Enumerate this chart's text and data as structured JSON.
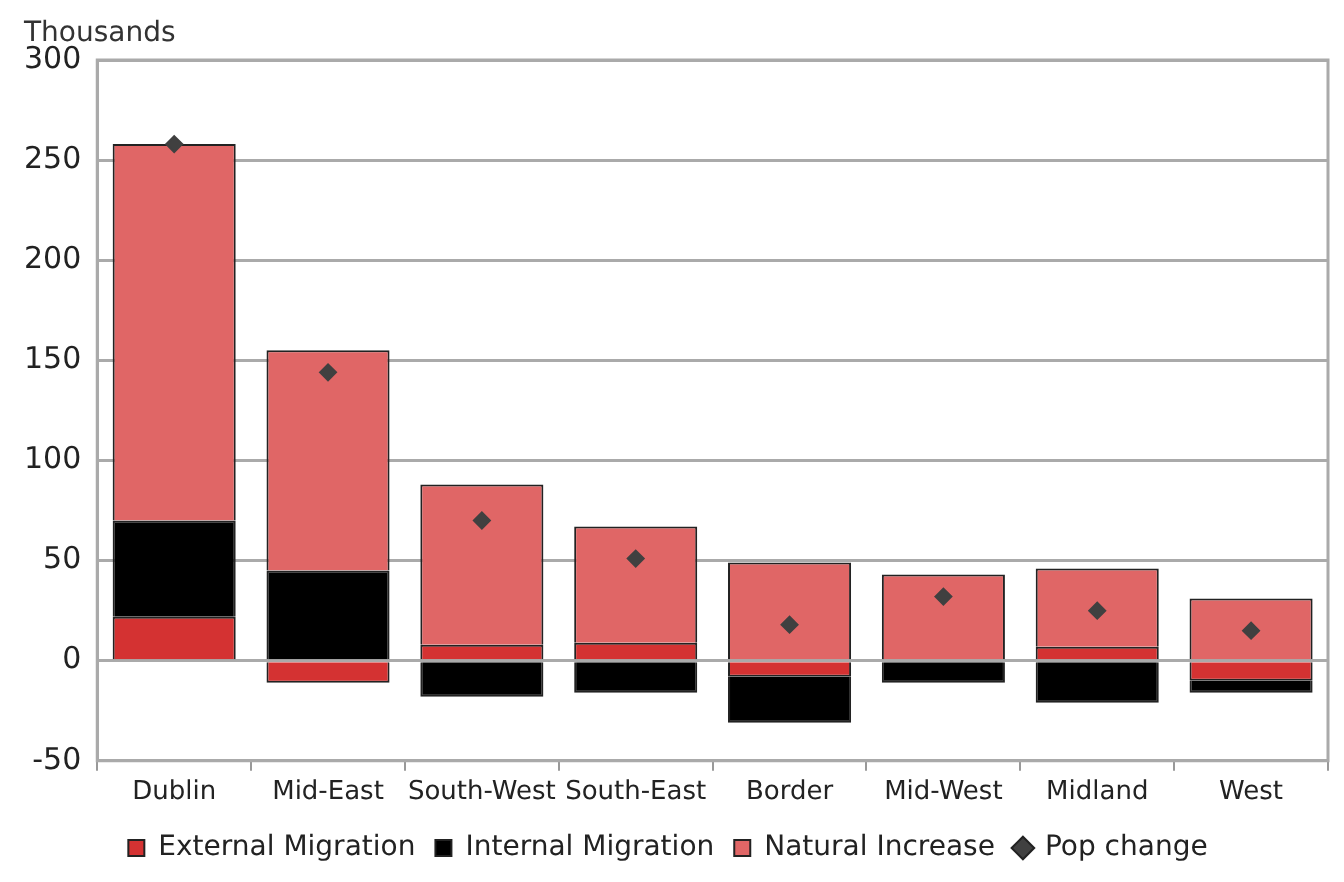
{
  "chart_data": {
    "type": "bar",
    "ylabel": "Thousands",
    "stacked": true,
    "categories": [
      "Dublin",
      "Mid-East",
      "South-West",
      "South-East",
      "Border",
      "Mid-West",
      "Midland",
      "West"
    ],
    "series": [
      {
        "name": "External Migration",
        "color": "#d43232",
        "values": [
          22,
          -11,
          8,
          9,
          -8,
          0,
          7,
          -10
        ]
      },
      {
        "name": "Internal Migration",
        "color": "#000000",
        "values": [
          48,
          45,
          -18,
          -16,
          -23,
          -11,
          -21,
          -6
        ]
      },
      {
        "name": "Natural Increase",
        "color": "#e06666",
        "values": [
          188,
          110,
          80,
          58,
          49,
          43,
          39,
          31
        ]
      },
      {
        "name": "Pop change",
        "type": "scatter",
        "color": "#404040",
        "x": [
          "Dublin",
          "Mid-East",
          "South-West",
          "South-East",
          "Border",
          "Mid-West",
          "Midland",
          "West"
        ],
        "values": [
          258,
          144,
          70,
          51,
          18,
          32,
          25,
          15
        ]
      }
    ],
    "ylim": [
      -50,
      300
    ],
    "yticks": [
      -50,
      0,
      50,
      100,
      150,
      200,
      250,
      300
    ],
    "grid": "y",
    "legend": "bottom",
    "marker": "diamond"
  }
}
